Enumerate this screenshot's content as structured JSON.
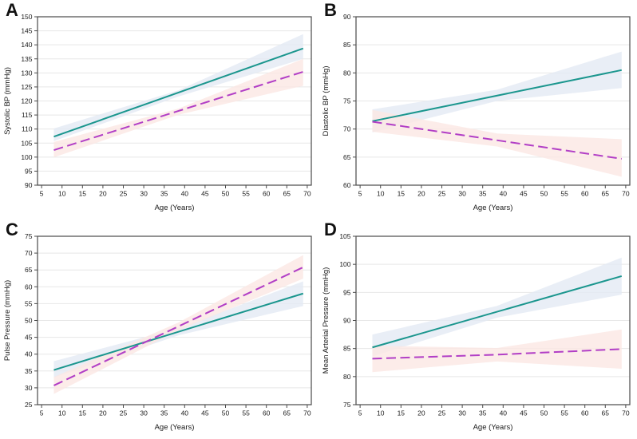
{
  "figure": {
    "background": "#ffffff",
    "colors": {
      "solid_line": "#1b968e",
      "dashed_line": "#b23fc6",
      "solid_band": "#e3eaf4",
      "dashed_band": "#fbe7e4",
      "grid": "#e7e7e7",
      "axis_box": "#4a4a4a",
      "tick_text": "#1a1a1a",
      "label_text": "#1a1a1a"
    },
    "panel_labels": [
      "A",
      "B",
      "C",
      "D"
    ]
  },
  "chart_data": [
    {
      "type": "line",
      "panel": "A",
      "title": "",
      "xlabel": "Age (Years)",
      "ylabel": "Systolic BP (mmHg)",
      "xlim": [
        4,
        71
      ],
      "ylim": [
        90,
        150
      ],
      "xticks": [
        5,
        10,
        15,
        20,
        25,
        30,
        35,
        40,
        45,
        50,
        55,
        60,
        65,
        70
      ],
      "yticks": [
        90,
        95,
        100,
        105,
        110,
        115,
        120,
        125,
        130,
        135,
        140,
        145,
        150
      ],
      "grid": "horizontal",
      "legend": "none",
      "series": [
        {
          "name": "solid-teal",
          "style": "solid",
          "x": [
            8,
            69
          ],
          "y": [
            107.3,
            138.7
          ],
          "band_x": [
            8,
            38.5,
            69
          ],
          "band_lower": [
            105.7,
            121.6,
            135.0
          ],
          "band_upper": [
            110.2,
            123.8,
            143.8
          ]
        },
        {
          "name": "dashed-magenta",
          "style": "dashed",
          "x": [
            8,
            69
          ],
          "y": [
            102.5,
            130.4
          ],
          "band_x": [
            8,
            38.5,
            69
          ],
          "band_lower": [
            99.9,
            115.1,
            125.4
          ],
          "band_upper": [
            105.4,
            117.3,
            135.0
          ]
        }
      ]
    },
    {
      "type": "line",
      "panel": "B",
      "title": "",
      "xlabel": "Age (Years)",
      "ylabel": "Diastolic BP (mmHg)",
      "xlim": [
        4,
        71
      ],
      "ylim": [
        60,
        90
      ],
      "xticks": [
        5,
        10,
        15,
        20,
        25,
        30,
        35,
        40,
        45,
        50,
        55,
        60,
        65,
        70
      ],
      "yticks": [
        60,
        65,
        70,
        75,
        80,
        85,
        90
      ],
      "grid": "horizontal",
      "legend": "none",
      "series": [
        {
          "name": "solid-teal",
          "style": "solid",
          "x": [
            8,
            69
          ],
          "y": [
            71.4,
            80.5
          ],
          "band_x": [
            8,
            38.5,
            69
          ],
          "band_lower": [
            69.4,
            75.0,
            77.3
          ],
          "band_upper": [
            73.5,
            77.0,
            83.8
          ]
        },
        {
          "name": "dashed-magenta",
          "style": "dashed",
          "x": [
            8,
            69
          ],
          "y": [
            71.3,
            64.7
          ],
          "band_x": [
            8,
            38.5,
            69
          ],
          "band_lower": [
            69.5,
            66.9,
            61.5
          ],
          "band_upper": [
            73.4,
            69.2,
            68.2
          ]
        }
      ]
    },
    {
      "type": "line",
      "panel": "C",
      "title": "",
      "xlabel": "Age (Years)",
      "ylabel": "Pulse Pressure (mmHg)",
      "xlim": [
        4,
        71
      ],
      "ylim": [
        25,
        75
      ],
      "xticks": [
        5,
        10,
        15,
        20,
        25,
        30,
        35,
        40,
        45,
        50,
        55,
        60,
        65,
        70
      ],
      "yticks": [
        25,
        30,
        35,
        40,
        45,
        50,
        55,
        60,
        65,
        70,
        75
      ],
      "grid": "horizontal",
      "legend": "none",
      "series": [
        {
          "name": "solid-teal",
          "style": "solid",
          "x": [
            8,
            69
          ],
          "y": [
            35.3,
            58.0
          ],
          "band_x": [
            8,
            38.5,
            69
          ],
          "band_lower": [
            33.1,
            45.6,
            54.3
          ],
          "band_upper": [
            37.9,
            47.7,
            61.6
          ]
        },
        {
          "name": "dashed-magenta",
          "style": "dashed",
          "x": [
            8,
            69
          ],
          "y": [
            30.7,
            65.8
          ],
          "band_x": [
            8,
            38.5,
            69
          ],
          "band_lower": [
            28.2,
            47.1,
            62.4
          ],
          "band_upper": [
            33.2,
            49.4,
            69.4
          ]
        }
      ]
    },
    {
      "type": "line",
      "panel": "D",
      "title": "",
      "xlabel": "Age (Years)",
      "ylabel": "Mean Arterial Pressure (mmHg)",
      "xlim": [
        4,
        71
      ],
      "ylim": [
        75,
        105
      ],
      "xticks": [
        5,
        10,
        15,
        20,
        25,
        30,
        35,
        40,
        45,
        50,
        55,
        60,
        65,
        70
      ],
      "yticks": [
        75,
        80,
        85,
        90,
        95,
        100,
        105
      ],
      "grid": "horizontal",
      "legend": "none",
      "series": [
        {
          "name": "solid-teal",
          "style": "solid",
          "x": [
            8,
            69
          ],
          "y": [
            85.2,
            97.9
          ],
          "band_x": [
            8,
            38.5,
            69
          ],
          "band_lower": [
            83.6,
            90.5,
            94.6
          ],
          "band_upper": [
            87.5,
            92.6,
            101.2
          ]
        },
        {
          "name": "dashed-magenta",
          "style": "dashed",
          "x": [
            8,
            38,
            69
          ],
          "y": [
            83.2,
            83.9,
            84.9
          ],
          "band_x": [
            8,
            38.5,
            69
          ],
          "band_lower": [
            80.8,
            82.7,
            81.4
          ],
          "band_upper": [
            85.5,
            85.1,
            88.4
          ]
        }
      ]
    }
  ]
}
